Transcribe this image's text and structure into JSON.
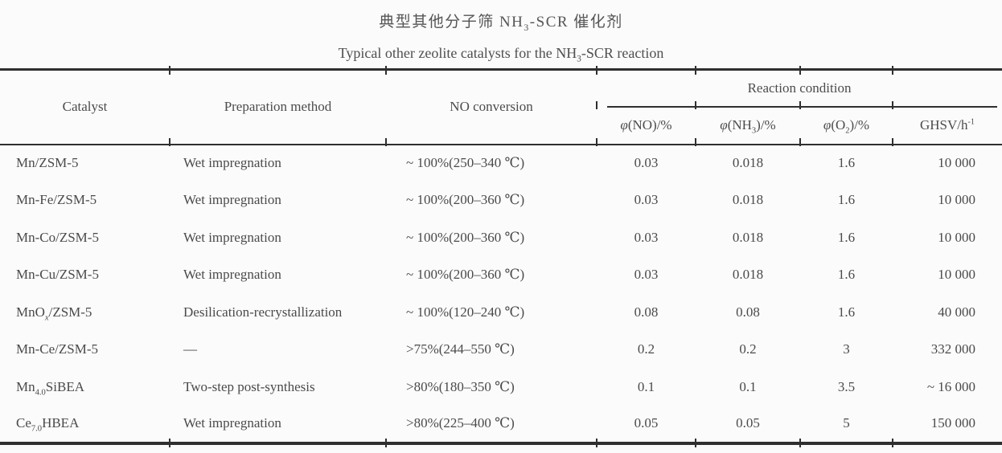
{
  "titles": {
    "zh": [
      {
        "t": "典型其他分子筛 NH"
      },
      {
        "t": "3",
        "sub": true
      },
      {
        "t": "-SCR 催化剂"
      }
    ],
    "en": [
      {
        "t": "Typical other zeolite catalysts for the NH"
      },
      {
        "t": "3",
        "sub": true
      },
      {
        "t": "-SCR reaction"
      }
    ]
  },
  "table": {
    "columns": {
      "catalyst": "Catalyst",
      "preparation": "Preparation method",
      "no_conversion": "NO conversion",
      "reaction_condition": "Reaction condition",
      "sub": [
        [
          {
            "t": "φ",
            "italic": true
          },
          {
            "t": "(NO)/%"
          }
        ],
        [
          {
            "t": "φ",
            "italic": true
          },
          {
            "t": "(NH"
          },
          {
            "t": "3",
            "sub": true
          },
          {
            "t": ")/%"
          }
        ],
        [
          {
            "t": "φ",
            "italic": true
          },
          {
            "t": "(O"
          },
          {
            "t": "2",
            "sub": true
          },
          {
            "t": ")/%"
          }
        ],
        [
          {
            "t": "GHSV/h"
          },
          {
            "t": "-1",
            "sup": true
          }
        ]
      ]
    },
    "rows": [
      {
        "catalyst": [
          {
            "t": "Mn/ZSM-5"
          }
        ],
        "preparation": "Wet impregnation",
        "no_conversion": "~ 100%(250–340 ℃)",
        "phi_no": "0.03",
        "phi_nh3": "0.018",
        "phi_o2": "1.6",
        "ghsv": "10 000"
      },
      {
        "catalyst": [
          {
            "t": "Mn-Fe/ZSM-5"
          }
        ],
        "preparation": "Wet impregnation",
        "no_conversion": "~ 100%(200–360 ℃)",
        "phi_no": "0.03",
        "phi_nh3": "0.018",
        "phi_o2": "1.6",
        "ghsv": "10 000"
      },
      {
        "catalyst": [
          {
            "t": "Mn-Co/ZSM-5"
          }
        ],
        "preparation": "Wet impregnation",
        "no_conversion": "~ 100%(200–360 ℃)",
        "phi_no": "0.03",
        "phi_nh3": "0.018",
        "phi_o2": "1.6",
        "ghsv": "10 000"
      },
      {
        "catalyst": [
          {
            "t": "Mn-Cu/ZSM-5"
          }
        ],
        "preparation": "Wet impregnation",
        "no_conversion": "~ 100%(200–360 ℃)",
        "phi_no": "0.03",
        "phi_nh3": "0.018",
        "phi_o2": "1.6",
        "ghsv": "10 000"
      },
      {
        "catalyst": [
          {
            "t": "MnO"
          },
          {
            "t": "x",
            "sub": true,
            "italic": true
          },
          {
            "t": "/ZSM-5"
          }
        ],
        "preparation": "Desilication-recrystallization",
        "no_conversion": "~ 100%(120–240 ℃)",
        "phi_no": "0.08",
        "phi_nh3": "0.08",
        "phi_o2": "1.6",
        "ghsv": "40 000"
      },
      {
        "catalyst": [
          {
            "t": "Mn-Ce/ZSM-5"
          }
        ],
        "preparation": "—",
        "no_conversion": ">75%(244–550 ℃)",
        "phi_no": "0.2",
        "phi_nh3": "0.2",
        "phi_o2": "3",
        "ghsv": "332 000"
      },
      {
        "catalyst": [
          {
            "t": "Mn"
          },
          {
            "t": "4.0",
            "sub": true
          },
          {
            "t": "SiBEA"
          }
        ],
        "preparation": "Two-step post-synthesis",
        "no_conversion": ">80%(180–350 ℃)",
        "phi_no": "0.1",
        "phi_nh3": "0.1",
        "phi_o2": "3.5",
        "ghsv": "~ 16 000"
      },
      {
        "catalyst": [
          {
            "t": "Ce"
          },
          {
            "t": "7.0",
            "sub": true
          },
          {
            "t": "HBEA"
          }
        ],
        "preparation": "Wet impregnation",
        "no_conversion": ">80%(225–400 ℃)",
        "phi_no": "0.05",
        "phi_nh3": "0.05",
        "phi_o2": "5",
        "ghsv": "150 000"
      }
    ]
  }
}
